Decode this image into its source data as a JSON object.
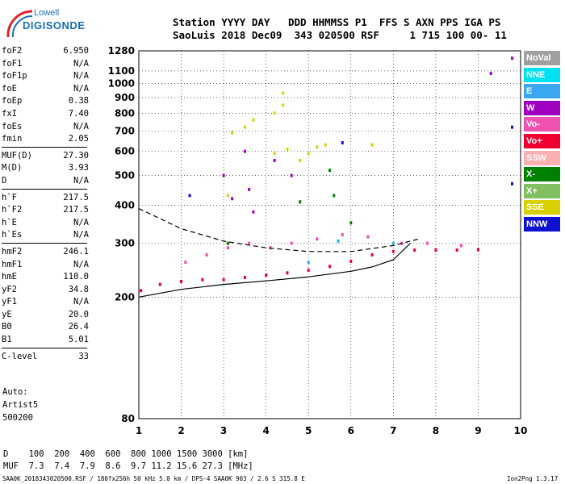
{
  "logo": {
    "brand": "Lowell",
    "name": "DIGISONDE"
  },
  "header": {
    "line1": "Station YYYY DAY   DDD HHMMSS P1  FFS S AXN PPS IGA PS",
    "line2": "SaoLuis 2018 Dec09  343 020500 RSF     1 715 100 00- 11"
  },
  "params": [
    {
      "label": "foF2",
      "value": "6.950"
    },
    {
      "label": "foF1",
      "value": "N/A"
    },
    {
      "label": "foF1p",
      "value": "N/A"
    },
    {
      "label": "foE",
      "value": "N/A"
    },
    {
      "label": "foEp",
      "value": "0.38"
    },
    {
      "label": "fxI",
      "value": "7.40"
    },
    {
      "label": "foEs",
      "value": "N/A"
    },
    {
      "label": "fmin",
      "value": "2.05"
    },
    {
      "label": "MUF(D)",
      "value": "27.30"
    },
    {
      "label": "M(D)",
      "value": "3.93"
    },
    {
      "label": "D",
      "value": "N/A"
    },
    {
      "label": "h`F",
      "value": "217.5"
    },
    {
      "label": "h`F2",
      "value": "217.5"
    },
    {
      "label": "h`E",
      "value": "N/A"
    },
    {
      "label": "h`Es",
      "value": "N/A"
    },
    {
      "label": "hmF2",
      "value": "246.1"
    },
    {
      "label": "hmF1",
      "value": "N/A"
    },
    {
      "label": "hmE",
      "value": "110.0"
    },
    {
      "label": "yF2",
      "value": "34.8"
    },
    {
      "label": "yF1",
      "value": "N/A"
    },
    {
      "label": "yE",
      "value": "20.0"
    },
    {
      "label": "B0",
      "value": "26.4"
    },
    {
      "label": "B1",
      "value": "5.01"
    },
    {
      "label": "C-level",
      "value": "33"
    }
  ],
  "auto": {
    "line1": "Auto:",
    "line2": "Artist5",
    "line3": "500200"
  },
  "dmuf": {
    "d_row": "D    100  200  400  600  800 1000 1500 3000 [km]",
    "muf_row": "MUF  7.3  7.4  7.9  8.6  9.7 11.2 15.6 27.3 [MHz]"
  },
  "footer": {
    "left": "SAA0K_2018343020500.RSF / 180fx256h 50 kHz 5.0 km / DPS-4 SAA0K 903 / 2.6 S 315.8 E",
    "right": "Ion2Png 1.3.17"
  },
  "legend": [
    {
      "label": "NoVal",
      "color": "#a0a0a0"
    },
    {
      "label": "NNE",
      "color": "#00e0f0"
    },
    {
      "label": "E",
      "color": "#3aa8f0"
    },
    {
      "label": "W",
      "color": "#a000c0"
    },
    {
      "label": "Vo-",
      "color": "#f050b0"
    },
    {
      "label": "Vo+",
      "color": "#f00030"
    },
    {
      "label": "SSW",
      "color": "#f8b0b0"
    },
    {
      "label": "X-",
      "color": "#008000"
    },
    {
      "label": "X+",
      "color": "#80c060"
    },
    {
      "label": "SSE",
      "color": "#d8d000"
    },
    {
      "label": "NNW",
      "color": "#1010d0"
    }
  ],
  "chart_data": {
    "type": "scatter",
    "xlim": [
      1,
      10
    ],
    "ylim": [
      80,
      1280
    ],
    "yscale": "log",
    "x_ticks": [
      1,
      2,
      3,
      4,
      5,
      6,
      7,
      8,
      9,
      10
    ],
    "y_ticks": [
      80,
      200,
      300,
      400,
      500,
      600,
      700,
      800,
      900,
      1000,
      1100,
      1280
    ],
    "grid": "dotted",
    "legend_position": "right",
    "series": [
      {
        "name": "Vo+",
        "color": "#f00030",
        "points": [
          [
            1.05,
            210
          ],
          [
            1.5,
            220
          ],
          [
            2.0,
            225
          ],
          [
            2.5,
            228
          ],
          [
            3.0,
            228
          ],
          [
            3.5,
            232
          ],
          [
            4.0,
            236
          ],
          [
            4.5,
            240
          ],
          [
            5.0,
            245
          ],
          [
            5.5,
            252
          ],
          [
            6.0,
            262
          ],
          [
            6.5,
            275
          ],
          [
            7.0,
            282
          ],
          [
            7.5,
            285
          ],
          [
            8.0,
            285
          ],
          [
            8.5,
            285
          ],
          [
            9.0,
            286
          ]
        ]
      },
      {
        "name": "Vo-",
        "color": "#f050b0",
        "points": [
          [
            2.1,
            260
          ],
          [
            2.6,
            275
          ],
          [
            3.1,
            290
          ],
          [
            3.6,
            300
          ],
          [
            4.1,
            290
          ],
          [
            4.6,
            300
          ],
          [
            5.2,
            310
          ],
          [
            5.8,
            320
          ],
          [
            6.4,
            315
          ],
          [
            7.2,
            300
          ],
          [
            7.8,
            300
          ],
          [
            8.6,
            295
          ]
        ]
      },
      {
        "name": "W",
        "color": "#a000c0",
        "points": [
          [
            3.0,
            500
          ],
          [
            3.2,
            420
          ],
          [
            3.5,
            600
          ],
          [
            3.6,
            450
          ],
          [
            3.7,
            380
          ],
          [
            4.2,
            560
          ],
          [
            4.6,
            500
          ],
          [
            9.3,
            1080
          ],
          [
            9.8,
            1210
          ]
        ]
      },
      {
        "name": "SSE",
        "color": "#d8d000",
        "points": [
          [
            3.1,
            430
          ],
          [
            3.2,
            690
          ],
          [
            3.5,
            720
          ],
          [
            3.7,
            760
          ],
          [
            4.2,
            590
          ],
          [
            4.5,
            610
          ],
          [
            4.8,
            560
          ],
          [
            5.0,
            590
          ],
          [
            5.2,
            620
          ],
          [
            5.4,
            630
          ],
          [
            6.5,
            630
          ],
          [
            4.2,
            800
          ],
          [
            4.4,
            850
          ],
          [
            4.4,
            930
          ]
        ]
      },
      {
        "name": "X-",
        "color": "#008000",
        "points": [
          [
            5.5,
            520
          ],
          [
            6.0,
            350
          ],
          [
            3.1,
            300
          ],
          [
            4.8,
            410
          ],
          [
            5.6,
            430
          ]
        ]
      },
      {
        "name": "E",
        "color": "#3aa8f0",
        "points": [
          [
            5.7,
            305
          ],
          [
            7.0,
            300
          ],
          [
            5.0,
            260
          ]
        ]
      },
      {
        "name": "NNW",
        "color": "#1010d0",
        "points": [
          [
            2.2,
            430
          ],
          [
            5.8,
            640
          ],
          [
            9.8,
            720
          ],
          [
            9.8,
            470
          ]
        ]
      }
    ],
    "curves": [
      {
        "name": "profile",
        "style": "solid",
        "points": [
          [
            1.0,
            200
          ],
          [
            2.0,
            212
          ],
          [
            3.0,
            220
          ],
          [
            4.0,
            226
          ],
          [
            5.0,
            233
          ],
          [
            6.0,
            243
          ],
          [
            6.5,
            251
          ],
          [
            7.0,
            265
          ],
          [
            7.4,
            300
          ]
        ]
      },
      {
        "name": "extra",
        "style": "dashed",
        "points": [
          [
            1.0,
            390
          ],
          [
            2.0,
            335
          ],
          [
            3.0,
            305
          ],
          [
            4.0,
            290
          ],
          [
            5.0,
            282
          ],
          [
            6.0,
            282
          ],
          [
            7.0,
            295
          ],
          [
            7.6,
            310
          ]
        ]
      }
    ]
  }
}
